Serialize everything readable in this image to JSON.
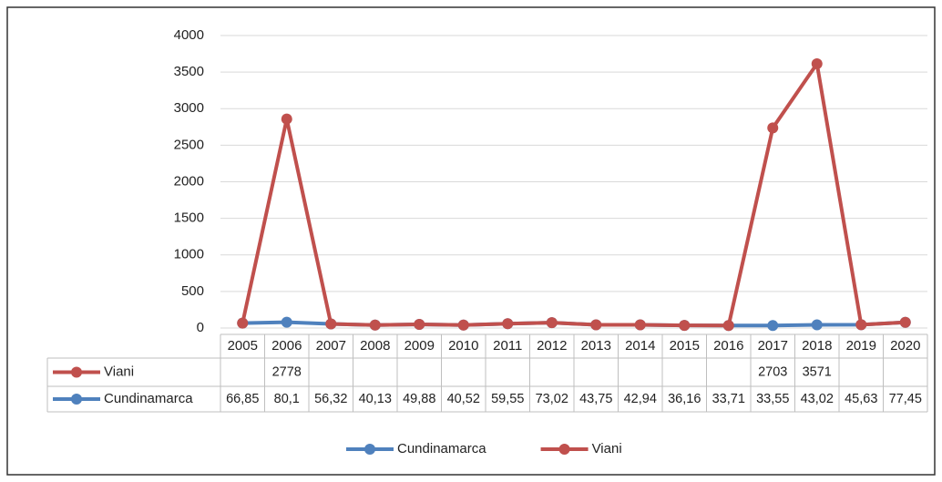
{
  "chart_data": {
    "type": "line",
    "stacked": true,
    "categories": [
      "2005",
      "2006",
      "2007",
      "2008",
      "2009",
      "2010",
      "2011",
      "2012",
      "2013",
      "2014",
      "2015",
      "2016",
      "2017",
      "2018",
      "2019",
      "2020"
    ],
    "series": [
      {
        "name": "Cundinamarca",
        "color": "#4f81bd",
        "values": [
          66.85,
          80.1,
          56.32,
          40.13,
          49.88,
          40.52,
          59.55,
          73.02,
          43.75,
          42.94,
          36.16,
          33.71,
          33.55,
          43.02,
          45.63,
          77.45
        ],
        "value_labels": [
          "66,85",
          "80,1",
          "56,32",
          "40,13",
          "49,88",
          "40,52",
          "59,55",
          "73,02",
          "43,75",
          "42,94",
          "36,16",
          "33,71",
          "33,55",
          "43,02",
          "45,63",
          "77,45"
        ]
      },
      {
        "name": "Viani",
        "color": "#c0504d",
        "values": [
          null,
          2778,
          null,
          null,
          null,
          null,
          null,
          null,
          null,
          null,
          null,
          null,
          2703,
          3571,
          null,
          null
        ]
      }
    ],
    "ylim": [
      0,
      4000
    ],
    "yticks": [
      0,
      500,
      1000,
      1500,
      2000,
      2500,
      3000,
      3500,
      4000
    ],
    "grid": true,
    "legend": "bottom"
  }
}
